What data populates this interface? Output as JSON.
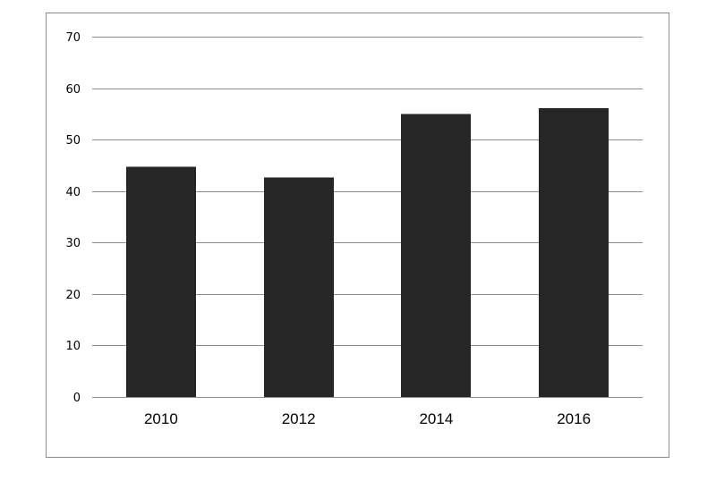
{
  "chart_data": {
    "type": "bar",
    "title": "",
    "xlabel": "",
    "ylabel": "",
    "categories": [
      "2010",
      "2012",
      "2014",
      "2016"
    ],
    "values": [
      44.7,
      42.6,
      55.0,
      56.1
    ],
    "ylim": [
      0,
      70
    ],
    "yticks": [
      0,
      10,
      20,
      30,
      40,
      50,
      60,
      70
    ],
    "ytick_labels": [
      "0",
      "10",
      "20",
      "30",
      "40",
      "50",
      "60",
      "70"
    ],
    "grid": true,
    "legend": "none",
    "colors": {
      "bar": "#262626",
      "grid": "#8c8c8c",
      "frame": "#8c8c8c",
      "text": "#000000"
    }
  }
}
